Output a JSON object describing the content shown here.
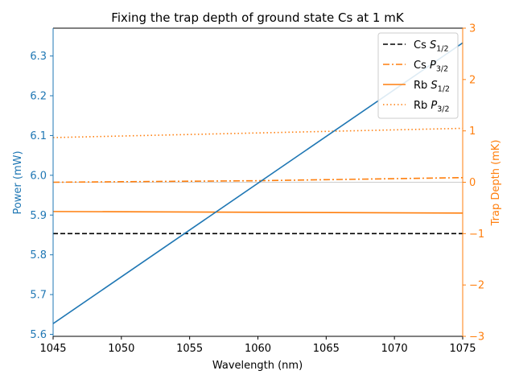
{
  "chart_data": {
    "type": "line",
    "title": "Fixing the trap depth of ground state Cs at 1 mK",
    "xlabel": "Wavelength (nm)",
    "ylabel_left": "Power (mW)",
    "ylabel_right": "Trap Depth (mK)",
    "xlim": [
      1045,
      1075
    ],
    "ylim_left": [
      5.595,
      6.37
    ],
    "ylim_right": [
      -3,
      3
    ],
    "x_ticks": [
      1045,
      1050,
      1055,
      1060,
      1065,
      1070,
      1075
    ],
    "y_left_ticks": [
      5.6,
      5.7,
      5.8,
      5.9,
      6.0,
      6.1,
      6.2,
      6.3
    ],
    "y_right_ticks": [
      -3,
      -2,
      -1,
      0,
      1,
      2,
      3
    ],
    "left_axis_color": "#1f77b4",
    "right_axis_color": "#ff7f0e",
    "grid": false,
    "legend_position": "top-right",
    "power_series": {
      "axis": "left",
      "color": "#1f77b4",
      "x": [
        1045,
        1075
      ],
      "y": [
        5.627,
        6.333
      ]
    },
    "series": [
      {
        "name": "Cs",
        "state": "S",
        "sub": "1/2",
        "axis": "right",
        "color": "#000000",
        "dash": "dashed",
        "x": [
          1045,
          1075
        ],
        "y": [
          -1.0,
          -1.0
        ]
      },
      {
        "name": "Cs",
        "state": "P",
        "sub": "3/2",
        "axis": "right",
        "color": "#ff7f0e",
        "dash": "dashdot",
        "x": [
          1045,
          1050,
          1055,
          1060,
          1065,
          1070,
          1075
        ],
        "y": [
          0.0,
          0.01,
          0.02,
          0.03,
          0.05,
          0.07,
          0.09
        ]
      },
      {
        "name": "Rb",
        "state": "S",
        "sub": "1/2",
        "axis": "right",
        "color": "#ff7f0e",
        "dash": "solid",
        "x": [
          1045,
          1075
        ],
        "y": [
          -0.57,
          -0.6
        ]
      },
      {
        "name": "Rb",
        "state": "P",
        "sub": "3/2",
        "axis": "right",
        "color": "#ff7f0e",
        "dash": "dotted",
        "x": [
          1045,
          1050,
          1055,
          1060,
          1065,
          1070,
          1075
        ],
        "y": [
          0.87,
          0.9,
          0.93,
          0.96,
          0.99,
          1.02,
          1.05
        ]
      }
    ],
    "reference_line": {
      "axis": "right",
      "y": 0,
      "color": "#cccccc"
    }
  }
}
